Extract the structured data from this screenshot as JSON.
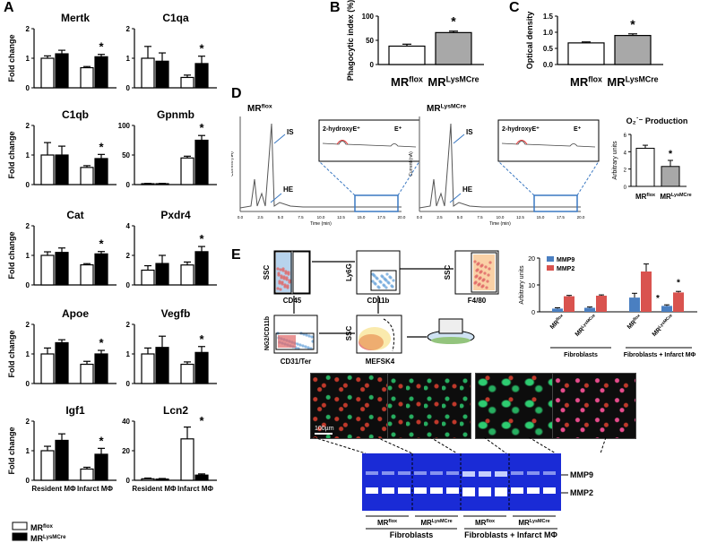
{
  "figure": {
    "panel_labels": [
      "A",
      "B",
      "C",
      "D",
      "E"
    ]
  },
  "colors": {
    "flox": "#ffffff",
    "lys": "#000000",
    "gray": "#a8a8a8",
    "mmp9": "#4a7fc1",
    "mmp2": "#d9534f"
  },
  "panel_a": {
    "ylabel": "Fold change",
    "group_labels": [
      "Resident MΦ",
      "Infarct MΦ"
    ],
    "legend": {
      "flox_base": "MR",
      "flox_sup": "flox",
      "lys_base": "MR",
      "lys_sup": "LysMCre"
    },
    "genes": [
      {
        "name": "Mertk",
        "ymax": 2,
        "ticks": [
          "0",
          "1",
          "2"
        ],
        "values": [
          1.0,
          1.15,
          0.68,
          1.05
        ],
        "err": [
          0.08,
          0.12,
          0.04,
          0.08
        ],
        "star": "*"
      },
      {
        "name": "C1qa",
        "ymax": 2,
        "ticks": [
          "0",
          "1",
          "2"
        ],
        "values": [
          1.0,
          0.9,
          0.35,
          0.82
        ],
        "err": [
          0.4,
          0.28,
          0.08,
          0.25
        ],
        "star": "*"
      },
      {
        "name": "C1qb",
        "ymax": 2,
        "ticks": [
          "0",
          "1",
          "2"
        ],
        "values": [
          1.0,
          1.0,
          0.58,
          0.88
        ],
        "err": [
          0.42,
          0.3,
          0.06,
          0.14
        ],
        "star": "*"
      },
      {
        "name": "Gpnmb",
        "ymax": 100,
        "ticks": [
          "0",
          "50",
          "100"
        ],
        "values": [
          1.5,
          1.5,
          45,
          75
        ],
        "err": [
          0.5,
          0.5,
          3,
          8
        ],
        "star": "*"
      },
      {
        "name": "Cat",
        "ymax": 2,
        "ticks": [
          "0",
          "1",
          "2"
        ],
        "values": [
          1.0,
          1.1,
          0.68,
          1.05
        ],
        "err": [
          0.12,
          0.15,
          0.04,
          0.08
        ],
        "star": "*"
      },
      {
        "name": "Pxdr4",
        "ymax": 4,
        "ticks": [
          "0",
          "2",
          "4"
        ],
        "values": [
          1.0,
          1.45,
          1.35,
          2.25
        ],
        "err": [
          0.3,
          0.55,
          0.2,
          0.35
        ],
        "star": "*"
      },
      {
        "name": "Apoe",
        "ymax": 2,
        "ticks": [
          "0",
          "1",
          "2"
        ],
        "values": [
          1.0,
          1.38,
          0.65,
          1.0
        ],
        "err": [
          0.2,
          0.1,
          0.1,
          0.12
        ],
        "star": "*"
      },
      {
        "name": "Vegfb",
        "ymax": 2,
        "ticks": [
          "0",
          "1",
          "2"
        ],
        "values": [
          1.0,
          1.22,
          0.65,
          1.05
        ],
        "err": [
          0.2,
          0.38,
          0.08,
          0.2
        ],
        "star": "*"
      },
      {
        "name": "Igf1",
        "ymax": 2,
        "ticks": [
          "0",
          "1",
          "2"
        ],
        "values": [
          1.0,
          1.35,
          0.38,
          0.88
        ],
        "err": [
          0.15,
          0.22,
          0.06,
          0.2
        ],
        "star": "*"
      },
      {
        "name": "Lcn2",
        "ymax": 40,
        "ticks": [
          "0",
          "20",
          "40"
        ],
        "values": [
          1.0,
          0.8,
          28,
          3.5
        ],
        "err": [
          0.5,
          0.4,
          8,
          0.8
        ],
        "star": "*"
      }
    ]
  },
  "panel_b": {
    "ylabel": "Phagocytic index (%)",
    "ymax": 100,
    "ticks": [
      "0",
      "50",
      "100"
    ],
    "values": [
      38,
      66
    ],
    "err": [
      4,
      3
    ],
    "star": "*",
    "xlabels": [
      {
        "base": "MR",
        "sup": "flox"
      },
      {
        "base": "MR",
        "sup": "LysMCre"
      }
    ]
  },
  "panel_c": {
    "ylabel": "Optical density",
    "ymax": 1.5,
    "ticks": [
      "0.0",
      "0.5",
      "1.0",
      "1.5"
    ],
    "values": [
      0.67,
      0.9
    ],
    "err": [
      0.03,
      0.05
    ],
    "star": "*",
    "xlabels": [
      {
        "base": "MR",
        "sup": "flox"
      },
      {
        "base": "MR",
        "sup": "LysMCre"
      }
    ]
  },
  "panel_d": {
    "left_title": {
      "base": "MR",
      "sup": "flox"
    },
    "right_title": {
      "base": "MR",
      "sup": "LysMCre"
    },
    "peak_labels": {
      "is": "IS",
      "he": "HE",
      "hydroxy": "2-hydroxyE⁺",
      "e": "E⁺"
    },
    "x_ticks": [
      "0.0",
      "2.5",
      "5.0",
      "7.5",
      "10.0",
      "12.5",
      "15.0",
      "17.5",
      "20.0"
    ],
    "x_axis": "Time (min)",
    "y_axis": "Current (nA)",
    "production": {
      "title": "O₂˙⁻ Production",
      "ylabel": "Arbitrary units",
      "ymax": 6,
      "ticks": [
        "0",
        "2",
        "4",
        "6"
      ],
      "values": [
        4.4,
        2.3
      ],
      "err": [
        0.35,
        0.7
      ],
      "star": "*",
      "xlabels": [
        {
          "base": "MR",
          "sup": "flox"
        },
        {
          "base": "MR",
          "sup": "LysMCre"
        }
      ]
    }
  },
  "panel_e": {
    "flow_labels": {
      "ssc1": "SSC",
      "cd45": "CD45",
      "ly6g": "Ly6G",
      "cd11b": "CD11b",
      "ssc2": "SSC",
      "f480": "F4/80",
      "ng2": "NG2/CD11b",
      "cd31": "CD31/Ter",
      "ssc3": "SSC",
      "mefsk4": "MEFSK4"
    },
    "mmp_chart": {
      "ylabel": "Arbitrary units",
      "ymax": 20,
      "ticks": [
        "0",
        "10",
        "20"
      ],
      "legend": [
        "MMP9",
        "MMP2"
      ],
      "groups": [
        {
          "label": {
            "base": "MR",
            "sup": "flox"
          },
          "mmp9": 1.2,
          "mmp2": 5.8,
          "e9": 0.3,
          "e2": 0.3
        },
        {
          "label": {
            "base": "MR",
            "sup": "LysMCre"
          },
          "mmp9": 1.5,
          "mmp2": 6.0,
          "e9": 0.3,
          "e2": 0.3
        },
        {
          "label": {
            "base": "MR",
            "sup": "flox"
          },
          "mmp9": 5.3,
          "mmp2": 15.0,
          "e9": 1.6,
          "e2": 2.8
        },
        {
          "label": {
            "base": "MR",
            "sup": "LysMCre"
          },
          "mmp9": 2.2,
          "mmp2": 7.2,
          "e9": 0.4,
          "e2": 0.4
        }
      ],
      "stars": [
        "*",
        "*"
      ],
      "group_captions": [
        "Fibroblasts",
        "Fibroblasts + Infarct MΦ"
      ]
    },
    "scale_bar": "100µm",
    "gel": {
      "band_labels": [
        "MMP9",
        "MMP2"
      ],
      "lane_groups": [
        {
          "base": "MR",
          "sup": "flox"
        },
        {
          "base": "MR",
          "sup": "LysMCre"
        },
        {
          "base": "MR",
          "sup": "flox"
        },
        {
          "base": "MR",
          "sup": "LysMCre"
        }
      ],
      "captions": [
        "Fibroblasts",
        "Fibroblasts + Infarct MΦ"
      ]
    }
  }
}
